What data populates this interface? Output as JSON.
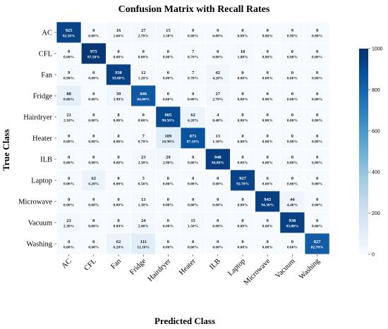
{
  "chart_data": {
    "type": "heatmap",
    "title": "Confusion Matrix with Recall Rates",
    "xlabel": "Predicted Class",
    "ylabel": "True Class",
    "rows": [
      "AC",
      "CFL",
      "Fan",
      "Fridge",
      "Hairdryer",
      "Heater",
      "ILB",
      "Laptop",
      "Microwave",
      "Vacuum",
      "Washing"
    ],
    "columns": [
      "AC",
      "CFL",
      "Fan",
      "Fridge",
      "Hairdryer",
      "Heater",
      "ILB",
      "Laptop",
      "Microwave",
      "Vacuum",
      "Washing"
    ],
    "counts": [
      [
        925,
        0,
        16,
        27,
        15,
        0,
        0,
        0,
        0,
        9,
        8
      ],
      [
        0,
        975,
        0,
        0,
        0,
        7,
        0,
        18,
        0,
        0,
        0
      ],
      [
        9,
        0,
        930,
        12,
        0,
        7,
        42,
        0,
        0,
        0,
        0
      ],
      [
        88,
        0,
        39,
        846,
        0,
        0,
        27,
        0,
        0,
        0,
        0
      ],
      [
        21,
        0,
        8,
        0,
        905,
        62,
        4,
        0,
        0,
        0,
        0
      ],
      [
        0,
        0,
        0,
        7,
        109,
        871,
        13,
        0,
        0,
        0,
        0
      ],
      [
        0,
        0,
        0,
        23,
        29,
        0,
        948,
        0,
        0,
        0,
        0
      ],
      [
        0,
        62,
        0,
        5,
        0,
        0,
        0,
        927,
        6,
        0,
        0
      ],
      [
        0,
        0,
        0,
        13,
        0,
        0,
        0,
        0,
        943,
        44,
        0
      ],
      [
        23,
        0,
        0,
        24,
        0,
        15,
        0,
        0,
        0,
        938,
        0
      ],
      [
        0,
        0,
        62,
        111,
        0,
        0,
        0,
        0,
        0,
        0,
        827
      ]
    ],
    "percentages": [
      [
        "92.50%",
        "0.00%",
        "1.60%",
        "2.70%",
        "1.50%",
        "0.00%",
        "0.00%",
        "0.00%",
        "0.00%",
        "0.90%",
        "0.80%"
      ],
      [
        "0.00%",
        "97.50%",
        "0.00%",
        "0.00%",
        "0.00%",
        "0.70%",
        "0.00%",
        "1.80%",
        "0.00%",
        "0.00%",
        "0.00%"
      ],
      [
        "0.90%",
        "0.00%",
        "93.00%",
        "1.20%",
        "0.00%",
        "0.70%",
        "4.20%",
        "0.00%",
        "0.00%",
        "0.00%",
        "0.00%"
      ],
      [
        "8.80%",
        "0.00%",
        "3.90%",
        "84.60%",
        "0.00%",
        "0.00%",
        "2.70%",
        "0.00%",
        "0.00%",
        "0.00%",
        "0.00%"
      ],
      [
        "2.10%",
        "0.00%",
        "0.80%",
        "0.00%",
        "90.50%",
        "6.20%",
        "0.40%",
        "0.00%",
        "0.00%",
        "0.00%",
        "0.00%"
      ],
      [
        "0.00%",
        "0.00%",
        "0.00%",
        "0.70%",
        "10.90%",
        "87.10%",
        "1.30%",
        "0.00%",
        "0.00%",
        "0.00%",
        "0.00%"
      ],
      [
        "0.00%",
        "0.00%",
        "0.00%",
        "2.30%",
        "2.90%",
        "0.00%",
        "94.80%",
        "0.00%",
        "0.00%",
        "0.00%",
        "0.00%"
      ],
      [
        "0.00%",
        "6.20%",
        "0.00%",
        "0.50%",
        "0.00%",
        "0.00%",
        "0.00%",
        "92.70%",
        "0.60%",
        "0.00%",
        "0.00%"
      ],
      [
        "0.00%",
        "0.00%",
        "0.00%",
        "1.30%",
        "0.00%",
        "0.00%",
        "0.00%",
        "0.00%",
        "94.30%",
        "4.40%",
        "0.00%"
      ],
      [
        "2.30%",
        "0.00%",
        "0.00%",
        "2.40%",
        "0.00%",
        "1.50%",
        "0.00%",
        "0.00%",
        "0.00%",
        "93.80%",
        "0.00%"
      ],
      [
        "0.00%",
        "0.00%",
        "6.20%",
        "11.10%",
        "0.00%",
        "0.00%",
        "0.00%",
        "0.00%",
        "0.00%",
        "0.00%",
        "82.70%"
      ]
    ],
    "colorbar": {
      "min": 0,
      "max": 1000,
      "ticks": [
        0,
        200,
        400,
        600,
        800,
        1000
      ]
    },
    "colormap": "Blues",
    "colors": {
      "low": "#f7fbff",
      "high": "#08306b"
    },
    "grid": true
  }
}
